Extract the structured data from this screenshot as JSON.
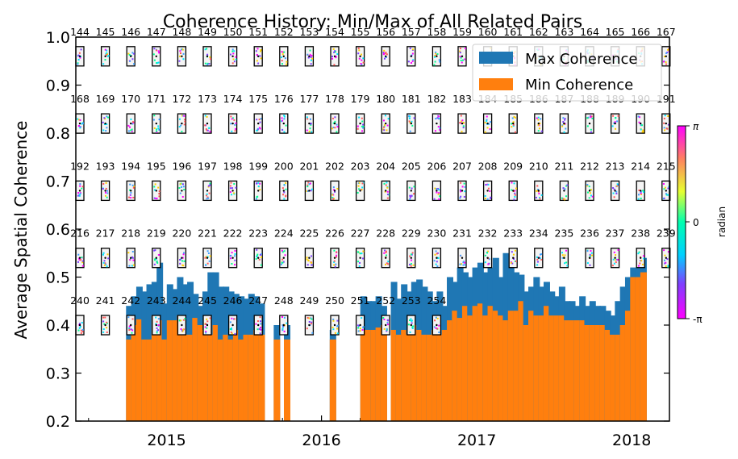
{
  "chart_data": {
    "type": "bar",
    "title": "Coherence History: Min/Max of All Related Pairs",
    "xlabel": "",
    "ylabel": "Average Spatial Coherence",
    "ylim": [
      0.2,
      1.0
    ],
    "y_ticks": [
      "0.2",
      "0.3",
      "0.4",
      "0.5",
      "0.6",
      "0.7",
      "0.8",
      "0.9",
      "1.0"
    ],
    "xlim": [
      "2014-06-01",
      "2018-03-31"
    ],
    "x_ticks": [
      {
        "label": "2015",
        "date": "2015-01-01"
      },
      {
        "label": "2016",
        "date": "2016-01-01"
      },
      {
        "label": "2017",
        "date": "2017-01-01"
      },
      {
        "label": "2018",
        "date": "2018-01-01"
      }
    ],
    "legend": {
      "position": "top-right",
      "entries": [
        {
          "label": "Max Coherence",
          "color": "#1f77b4"
        },
        {
          "label": "Min Coherence",
          "color": "#ff7f0e"
        }
      ]
    },
    "colorbar": {
      "label": "radian",
      "ticks": [
        "π",
        "0",
        "-π"
      ]
    },
    "bar_pairs": [
      {
        "date": "2014-10-05",
        "max": 0.44,
        "min": 0.37
      },
      {
        "date": "2014-10-17",
        "max": 0.46,
        "min": 0.4
      },
      {
        "date": "2014-10-29",
        "max": 0.48,
        "min": 0.412
      },
      {
        "date": "2014-11-10",
        "max": 0.47,
        "min": 0.37
      },
      {
        "date": "2014-11-22",
        "max": 0.485,
        "min": 0.37
      },
      {
        "date": "2014-12-04",
        "max": 0.49,
        "min": 0.42
      },
      {
        "date": "2014-12-16",
        "max": 0.53,
        "min": 0.41
      },
      {
        "date": "2014-12-28",
        "max": 0.445,
        "min": 0.37
      },
      {
        "date": "2015-01-09",
        "max": 0.485,
        "min": 0.41
      },
      {
        "date": "2015-01-21",
        "max": 0.475,
        "min": 0.41
      },
      {
        "date": "2015-02-02",
        "max": 0.5,
        "min": 0.42
      },
      {
        "date": "2015-02-14",
        "max": 0.485,
        "min": 0.38
      },
      {
        "date": "2015-02-26",
        "max": 0.49,
        "min": 0.38
      },
      {
        "date": "2015-03-10",
        "max": 0.465,
        "min": 0.415
      },
      {
        "date": "2015-03-22",
        "max": 0.44,
        "min": 0.4
      },
      {
        "date": "2015-04-03",
        "max": 0.47,
        "min": 0.39
      },
      {
        "date": "2015-04-15",
        "max": 0.51,
        "min": 0.38
      },
      {
        "date": "2015-04-27",
        "max": 0.51,
        "min": 0.4
      },
      {
        "date": "2015-05-09",
        "max": 0.48,
        "min": 0.37
      },
      {
        "date": "2015-05-21",
        "max": 0.48,
        "min": 0.38
      },
      {
        "date": "2015-06-02",
        "max": 0.47,
        "min": 0.37
      },
      {
        "date": "2015-06-14",
        "max": 0.465,
        "min": 0.39
      },
      {
        "date": "2015-06-26",
        "max": 0.46,
        "min": 0.37
      },
      {
        "date": "2015-07-08",
        "max": 0.455,
        "min": 0.38
      },
      {
        "date": "2015-07-20",
        "max": 0.465,
        "min": 0.38
      },
      {
        "date": "2015-08-01",
        "max": 0.46,
        "min": 0.39
      },
      {
        "date": "2015-08-13",
        "max": 0.445,
        "min": 0.38
      },
      {
        "date": "2015-09-18",
        "max": 0.4,
        "min": 0.37
      },
      {
        "date": "2015-10-12",
        "max": 0.4,
        "min": 0.37
      },
      {
        "date": "2016-01-28",
        "max": 0.39,
        "min": 0.37
      },
      {
        "date": "2016-04-09",
        "max": 0.46,
        "min": 0.39
      },
      {
        "date": "2016-04-21",
        "max": 0.45,
        "min": 0.39
      },
      {
        "date": "2016-05-03",
        "max": 0.45,
        "min": 0.39
      },
      {
        "date": "2016-05-15",
        "max": 0.46,
        "min": 0.395
      },
      {
        "date": "2016-05-27",
        "max": 0.44,
        "min": 0.4
      },
      {
        "date": "2016-06-20",
        "max": 0.49,
        "min": 0.39
      },
      {
        "date": "2016-07-02",
        "max": 0.455,
        "min": 0.38
      },
      {
        "date": "2016-07-14",
        "max": 0.485,
        "min": 0.39
      },
      {
        "date": "2016-07-26",
        "max": 0.47,
        "min": 0.38
      },
      {
        "date": "2016-08-07",
        "max": 0.49,
        "min": 0.4
      },
      {
        "date": "2016-08-19",
        "max": 0.495,
        "min": 0.39
      },
      {
        "date": "2016-08-31",
        "max": 0.48,
        "min": 0.38
      },
      {
        "date": "2016-09-12",
        "max": 0.47,
        "min": 0.38
      },
      {
        "date": "2016-09-24",
        "max": 0.45,
        "min": 0.39
      },
      {
        "date": "2016-10-06",
        "max": 0.47,
        "min": 0.38
      },
      {
        "date": "2016-10-18",
        "max": 0.44,
        "min": 0.39
      },
      {
        "date": "2016-10-30",
        "max": 0.5,
        "min": 0.41
      },
      {
        "date": "2016-11-11",
        "max": 0.49,
        "min": 0.43
      },
      {
        "date": "2016-11-23",
        "max": 0.52,
        "min": 0.415
      },
      {
        "date": "2016-12-05",
        "max": 0.51,
        "min": 0.44
      },
      {
        "date": "2016-12-17",
        "max": 0.5,
        "min": 0.42
      },
      {
        "date": "2016-12-29",
        "max": 0.52,
        "min": 0.44
      },
      {
        "date": "2017-01-10",
        "max": 0.53,
        "min": 0.445
      },
      {
        "date": "2017-01-22",
        "max": 0.51,
        "min": 0.42
      },
      {
        "date": "2017-02-03",
        "max": 0.52,
        "min": 0.44
      },
      {
        "date": "2017-02-15",
        "max": 0.54,
        "min": 0.43
      },
      {
        "date": "2017-02-27",
        "max": 0.5,
        "min": 0.42
      },
      {
        "date": "2017-03-11",
        "max": 0.55,
        "min": 0.41
      },
      {
        "date": "2017-03-23",
        "max": 0.52,
        "min": 0.43
      },
      {
        "date": "2017-04-04",
        "max": 0.51,
        "min": 0.43
      },
      {
        "date": "2017-04-16",
        "max": 0.505,
        "min": 0.45
      },
      {
        "date": "2017-04-28",
        "max": 0.47,
        "min": 0.4
      },
      {
        "date": "2017-05-10",
        "max": 0.48,
        "min": 0.43
      },
      {
        "date": "2017-05-22",
        "max": 0.5,
        "min": 0.42
      },
      {
        "date": "2017-06-03",
        "max": 0.48,
        "min": 0.42
      },
      {
        "date": "2017-06-15",
        "max": 0.49,
        "min": 0.44
      },
      {
        "date": "2017-06-27",
        "max": 0.47,
        "min": 0.42
      },
      {
        "date": "2017-07-09",
        "max": 0.46,
        "min": 0.42
      },
      {
        "date": "2017-07-21",
        "max": 0.48,
        "min": 0.42
      },
      {
        "date": "2017-08-02",
        "max": 0.45,
        "min": 0.41
      },
      {
        "date": "2017-08-14",
        "max": 0.45,
        "min": 0.41
      },
      {
        "date": "2017-08-26",
        "max": 0.44,
        "min": 0.41
      },
      {
        "date": "2017-09-07",
        "max": 0.46,
        "min": 0.41
      },
      {
        "date": "2017-09-19",
        "max": 0.44,
        "min": 0.4
      },
      {
        "date": "2017-10-01",
        "max": 0.45,
        "min": 0.4
      },
      {
        "date": "2017-10-13",
        "max": 0.44,
        "min": 0.4
      },
      {
        "date": "2017-10-25",
        "max": 0.44,
        "min": 0.4
      },
      {
        "date": "2017-11-06",
        "max": 0.43,
        "min": 0.39
      },
      {
        "date": "2017-11-18",
        "max": 0.42,
        "min": 0.38
      },
      {
        "date": "2017-11-30",
        "max": 0.45,
        "min": 0.38
      },
      {
        "date": "2017-12-12",
        "max": 0.48,
        "min": 0.4
      },
      {
        "date": "2017-12-24",
        "max": 0.5,
        "min": 0.43
      },
      {
        "date": "2018-01-05",
        "max": 0.52,
        "min": 0.5
      },
      {
        "date": "2018-01-17",
        "max": 0.52,
        "min": 0.5
      },
      {
        "date": "2018-01-29",
        "max": 0.54,
        "min": 0.51
      }
    ],
    "acquisition_numbers": {
      "rows": [
        {
          "y": 0.96,
          "numbers": [
            "144",
            "145",
            "146",
            "147",
            "148",
            "149",
            "150",
            "151",
            "152",
            "153",
            "154",
            "155",
            "156",
            "157",
            "158",
            "159",
            "160",
            "161",
            "162",
            "163",
            "164",
            "165",
            "166",
            "167"
          ]
        },
        {
          "y": 0.82,
          "numbers": [
            "168",
            "169",
            "170",
            "171",
            "172",
            "173",
            "174",
            "175",
            "176",
            "177",
            "178",
            "179",
            "180",
            "181",
            "182",
            "183",
            "184",
            "185",
            "186",
            "187",
            "188",
            "189",
            "190",
            "191"
          ]
        },
        {
          "y": 0.68,
          "numbers": [
            "192",
            "193",
            "194",
            "195",
            "196",
            "197",
            "198",
            "199",
            "200",
            "201",
            "202",
            "203",
            "204",
            "205",
            "206",
            "207",
            "208",
            "209",
            "210",
            "211",
            "212",
            "213",
            "214",
            "215"
          ]
        },
        {
          "y": 0.54,
          "numbers": [
            "216",
            "217",
            "218",
            "219",
            "220",
            "221",
            "222",
            "223",
            "224",
            "225",
            "226",
            "227",
            "228",
            "229",
            "230",
            "231",
            "232",
            "233",
            "234",
            "235",
            "236",
            "237",
            "238",
            "239"
          ]
        },
        {
          "y": 0.4,
          "numbers": [
            "240",
            "241",
            "242",
            "243",
            "244",
            "245",
            "246",
            "247",
            "248",
            "249",
            "250",
            "251",
            "252",
            "253",
            "254"
          ]
        }
      ]
    }
  }
}
